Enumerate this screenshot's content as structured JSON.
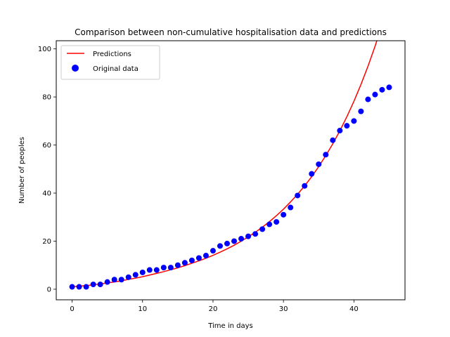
{
  "chart_data": {
    "type": "scatter",
    "title": "Comparison between non-cumulative hospitalisation data and predictions",
    "xlabel": "Time in days",
    "ylabel": "Number of peoples",
    "xlim": [
      -2.25,
      47.25
    ],
    "ylim": [
      -4.4,
      103.4
    ],
    "x_ticks": [
      0,
      10,
      20,
      30,
      40
    ],
    "y_ticks": [
      0,
      20,
      40,
      60,
      80,
      100
    ],
    "grid": false,
    "legend_position": "upper-left",
    "series": [
      {
        "name": "Predictions",
        "kind": "line",
        "color": "#ff0000",
        "x": [
          0,
          1,
          2,
          3,
          4,
          5,
          6,
          7,
          8,
          9,
          10,
          11,
          12,
          13,
          14,
          15,
          16,
          17,
          18,
          19,
          20,
          21,
          22,
          23,
          24,
          25,
          26,
          27,
          28,
          29,
          30,
          31,
          32,
          33,
          34,
          35,
          36,
          37,
          38,
          39,
          40,
          41,
          42,
          43,
          44,
          45
        ],
        "y": [
          1.0,
          1.3,
          1.5,
          1.8,
          2.2,
          2.6,
          3.0,
          3.5,
          4.1,
          4.6,
          5.2,
          5.9,
          6.6,
          7.3,
          8.1,
          8.9,
          9.8,
          10.8,
          11.8,
          12.9,
          14.1,
          15.4,
          16.8,
          18.3,
          20.0,
          21.8,
          23.7,
          25.8,
          28.1,
          30.6,
          33.3,
          36.3,
          39.5,
          43.0,
          46.8,
          51.0,
          55.6,
          60.5,
          65.9,
          71.8,
          78.2,
          85.2,
          92.8,
          101.1,
          110.2,
          120.1
        ]
      },
      {
        "name": "Original data",
        "kind": "scatter",
        "color": "#0000ff",
        "x": [
          0,
          1,
          2,
          3,
          4,
          5,
          6,
          7,
          8,
          9,
          10,
          11,
          12,
          13,
          14,
          15,
          16,
          17,
          18,
          19,
          20,
          21,
          22,
          23,
          24,
          25,
          26,
          27,
          28,
          29,
          30,
          31,
          32,
          33,
          34,
          35,
          36,
          37,
          38,
          39,
          40,
          41,
          42,
          43,
          44,
          45
        ],
        "y": [
          1,
          1,
          1,
          2,
          2,
          3,
          4,
          4,
          5,
          6,
          7,
          8,
          8,
          9,
          9,
          10,
          11,
          12,
          13,
          14,
          16,
          18,
          19,
          20,
          21,
          22,
          23,
          25,
          27,
          28,
          31,
          34,
          39,
          43,
          48,
          52,
          56,
          62,
          66,
          68,
          70,
          74,
          79,
          81,
          83,
          84
        ]
      }
    ]
  }
}
